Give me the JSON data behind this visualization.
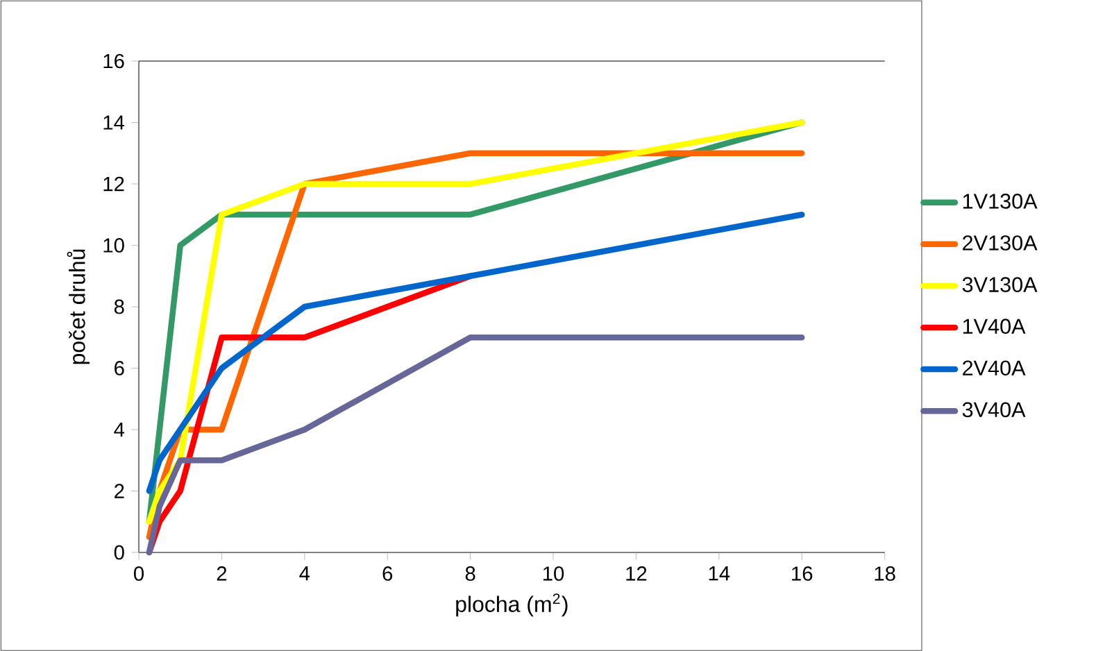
{
  "chart_data": {
    "type": "line",
    "xlabel": "plocha (m$^{2}$)",
    "ylabel": "počet druhů",
    "xlim": [
      0,
      18
    ],
    "ylim": [
      0,
      16
    ],
    "xticks": [
      0,
      2,
      4,
      6,
      8,
      10,
      12,
      14,
      16,
      18
    ],
    "yticks": [
      0,
      2,
      4,
      6,
      8,
      10,
      12,
      14,
      16
    ],
    "grid": false,
    "legend": "right",
    "marker": "none",
    "line_style": "solid",
    "series": [
      {
        "name": "1V130A",
        "color": "#339966",
        "x": [
          0.25,
          1,
          1.5,
          2,
          4,
          8,
          16
        ],
        "values": [
          1,
          10,
          10.5,
          11,
          11,
          11,
          14
        ]
      },
      {
        "name": "2V130A",
        "color": "#ff6600",
        "x": [
          0.25,
          0.5,
          1,
          2,
          4,
          8,
          16
        ],
        "values": [
          0.5,
          2,
          4,
          4,
          12,
          13,
          13
        ]
      },
      {
        "name": "3V130A",
        "color": "#ffff00",
        "x": [
          0.25,
          0.5,
          1,
          2,
          4,
          8,
          16
        ],
        "values": [
          1,
          2,
          3,
          11,
          12,
          12,
          14
        ]
      },
      {
        "name": "1V40A",
        "color": "#ff0000",
        "x": [
          0.25,
          0.5,
          1,
          2,
          4,
          8
        ],
        "values": [
          0,
          1,
          2,
          7,
          7,
          9
        ]
      },
      {
        "name": "2V40A",
        "color": "#0066cc",
        "x": [
          0.25,
          0.5,
          1,
          2,
          4,
          8,
          16
        ],
        "values": [
          2,
          3,
          4,
          6,
          8,
          9,
          11
        ]
      },
      {
        "name": "3V40A",
        "color": "#666699",
        "x": [
          0.25,
          0.5,
          1,
          2,
          4,
          8,
          16
        ],
        "values": [
          0,
          1.5,
          3,
          3,
          4,
          7,
          7
        ]
      }
    ]
  }
}
